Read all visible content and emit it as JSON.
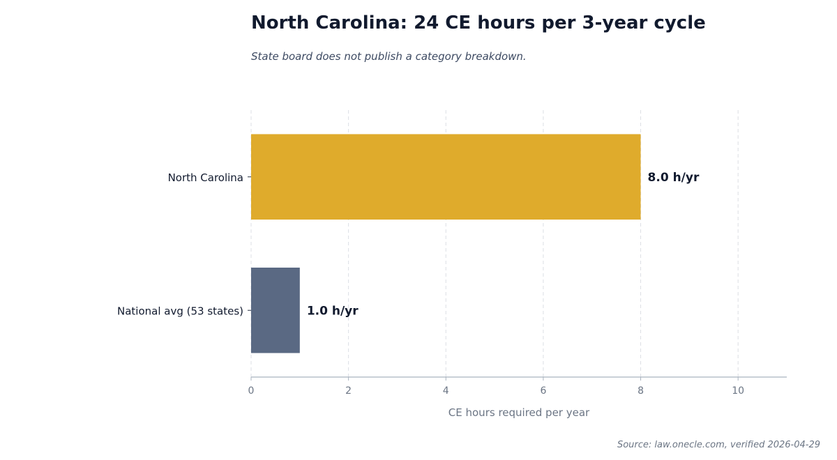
{
  "header": {
    "title": "North Carolina: 24 CE hours per 3-year cycle",
    "subtitle": "State board does not publish a category breakdown."
  },
  "footer": {
    "source": "Source: law.onecle.com, verified 2026-04-29"
  },
  "chart_data": {
    "type": "bar",
    "orientation": "horizontal",
    "categories": [
      "North Carolina",
      "National avg (53 states)"
    ],
    "values": [
      8.0,
      1.0
    ],
    "value_labels": [
      "8.0 h/yr",
      "1.0 h/yr"
    ],
    "colors": [
      "#dfab2c",
      "#5a6983"
    ],
    "xlabel": "CE hours required per year",
    "ylabel": "",
    "xlim": [
      0,
      11
    ],
    "xticks": [
      0,
      2,
      4,
      6,
      8,
      10
    ],
    "xtick_labels": [
      "0",
      "2",
      "4",
      "6",
      "8",
      "10"
    ],
    "grid": "vertical dashed",
    "legend": "none"
  }
}
